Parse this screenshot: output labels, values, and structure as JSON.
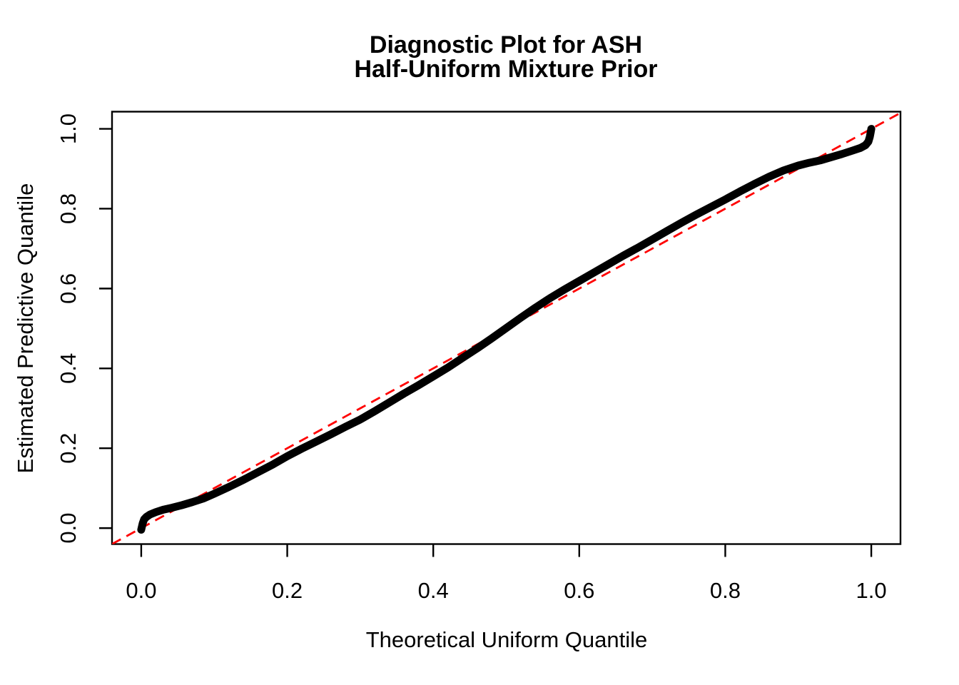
{
  "figure": {
    "title_line1": "Diagnostic Plot for ASH",
    "title_line2": "Half-Uniform Mixture Prior"
  },
  "colors": {
    "background": "#FFFFFF",
    "axis": "#000000",
    "reference_line": "#FF0000",
    "series": "#000000"
  },
  "chart_data": {
    "type": "line",
    "title": "Diagnostic Plot for ASH Half-Uniform Mixture Prior",
    "xlabel": "Theoretical Uniform Quantile",
    "ylabel": "Estimated Predictive Quantile",
    "xlim": [
      -0.04,
      1.04
    ],
    "ylim": [
      -0.04,
      1.043
    ],
    "grid": false,
    "legend": "none",
    "x_tick_values": [
      0.0,
      0.2,
      0.4,
      0.6,
      0.8,
      1.0
    ],
    "x_tick_labels": [
      "0.0",
      "0.2",
      "0.4",
      "0.6",
      "0.8",
      "1.0"
    ],
    "y_tick_values": [
      0.0,
      0.2,
      0.4,
      0.6,
      0.8,
      1.0
    ],
    "y_tick_labels": [
      "0.0",
      "0.2",
      "0.4",
      "0.6",
      "0.8",
      "1.0"
    ],
    "reference_line": {
      "name": "identity-line-y-equals-x",
      "color": "#FF0000",
      "style": "dashed",
      "from": [
        -0.04,
        -0.04
      ],
      "to": [
        1.043,
        1.043
      ]
    },
    "series": [
      {
        "name": "estimated-predictive-quantile-curve",
        "color": "#000000",
        "points": [
          [
            0.0,
            -0.004
          ],
          [
            0.002,
            0.012
          ],
          [
            0.004,
            0.022
          ],
          [
            0.007,
            0.028
          ],
          [
            0.012,
            0.034
          ],
          [
            0.02,
            0.04
          ],
          [
            0.03,
            0.046
          ],
          [
            0.042,
            0.051
          ],
          [
            0.055,
            0.057
          ],
          [
            0.07,
            0.065
          ],
          [
            0.085,
            0.074
          ],
          [
            0.1,
            0.086
          ],
          [
            0.12,
            0.103
          ],
          [
            0.14,
            0.121
          ],
          [
            0.16,
            0.14
          ],
          [
            0.18,
            0.159
          ],
          [
            0.2,
            0.18
          ],
          [
            0.22,
            0.199
          ],
          [
            0.24,
            0.217
          ],
          [
            0.26,
            0.235
          ],
          [
            0.28,
            0.254
          ],
          [
            0.3,
            0.272
          ],
          [
            0.32,
            0.293
          ],
          [
            0.34,
            0.315
          ],
          [
            0.36,
            0.337
          ],
          [
            0.38,
            0.358
          ],
          [
            0.4,
            0.38
          ],
          [
            0.42,
            0.402
          ],
          [
            0.44,
            0.426
          ],
          [
            0.46,
            0.45
          ],
          [
            0.48,
            0.475
          ],
          [
            0.5,
            0.501
          ],
          [
            0.52,
            0.527
          ],
          [
            0.54,
            0.552
          ],
          [
            0.56,
            0.576
          ],
          [
            0.58,
            0.598
          ],
          [
            0.6,
            0.619
          ],
          [
            0.62,
            0.64
          ],
          [
            0.64,
            0.661
          ],
          [
            0.66,
            0.682
          ],
          [
            0.68,
            0.702
          ],
          [
            0.7,
            0.723
          ],
          [
            0.72,
            0.744
          ],
          [
            0.74,
            0.765
          ],
          [
            0.76,
            0.785
          ],
          [
            0.78,
            0.804
          ],
          [
            0.8,
            0.823
          ],
          [
            0.82,
            0.843
          ],
          [
            0.84,
            0.862
          ],
          [
            0.86,
            0.88
          ],
          [
            0.88,
            0.896
          ],
          [
            0.9,
            0.908
          ],
          [
            0.915,
            0.915
          ],
          [
            0.93,
            0.921
          ],
          [
            0.945,
            0.929
          ],
          [
            0.96,
            0.937
          ],
          [
            0.975,
            0.946
          ],
          [
            0.985,
            0.952
          ],
          [
            0.992,
            0.959
          ],
          [
            0.996,
            0.968
          ],
          [
            0.998,
            0.98
          ],
          [
            0.999,
            0.99
          ],
          [
            1.0,
            1.0
          ]
        ]
      }
    ]
  }
}
